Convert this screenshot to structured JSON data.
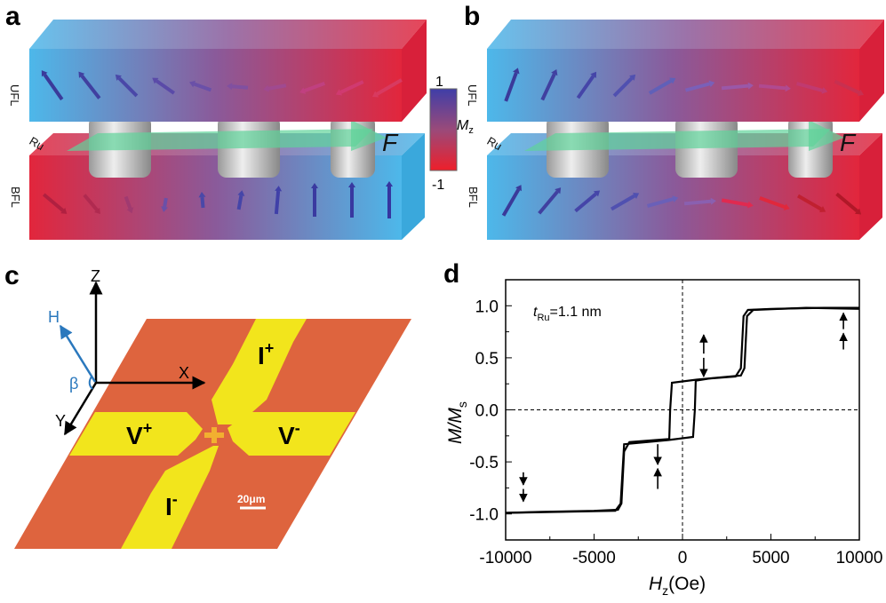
{
  "panels": {
    "a": {
      "label": "a",
      "top_layer": "UFL",
      "spacer": "Ru",
      "bottom_layer": "BFL",
      "force": "F"
    },
    "b": {
      "label": "b",
      "top_layer": "UFL",
      "spacer": "Ru",
      "bottom_layer": "BFL",
      "force": "F"
    },
    "c": {
      "label": "c",
      "axis_z": "Z",
      "axis_x": "X",
      "axis_y": "Y",
      "field": "H",
      "angle": "β",
      "lead_i_plus": "I",
      "lead_i_plus_sup": "+",
      "lead_i_minus": "I",
      "lead_i_minus_sup": "-",
      "lead_v_plus": "V",
      "lead_v_plus_sup": "+",
      "lead_v_minus": "V",
      "lead_v_minus_sup": "-",
      "scale_bar": "20μm",
      "colors": {
        "substrate": "#de643e",
        "leads": "#f2e51c",
        "field": "#2a78bd"
      }
    },
    "d": {
      "label": "d"
    }
  },
  "colorbar": {
    "max_label": "1",
    "min_label": "-1",
    "title": "M",
    "title_sub": "z",
    "colors": {
      "max": "#3f3ea8",
      "mid": "#9a4a7a",
      "min": "#ee1f2a"
    }
  },
  "slab_colors": {
    "blue": "#4db8ea",
    "purple": "#8a5a9a",
    "red": "#e2263c"
  },
  "chart_data": {
    "type": "line",
    "xlabel": "H",
    "xlabel_sub": "z",
    "xlabel_unit": "(Oe)",
    "ylabel": "M/M",
    "ylabel_sub": "s",
    "annotation": {
      "var": "t",
      "sub": "Ru",
      "text": "=1.1 nm"
    },
    "xlim": [
      -10000,
      10000
    ],
    "ylim": [
      -1.25,
      1.25
    ],
    "xticks": [
      "-10000",
      "-5000",
      "0",
      "5000",
      "10000"
    ],
    "yticks": [
      "-1.0",
      "-0.5",
      "0.0",
      "0.5",
      "1.0"
    ],
    "grid": false,
    "reference_lines": {
      "x": 0,
      "y": 0,
      "style": "dashed"
    },
    "series": [
      {
        "x": [
          10000,
          7000,
          4000,
          3650,
          3500,
          3300,
          2000,
          800,
          -600,
          -700,
          -750,
          -1500,
          -3000,
          -3300,
          -3450,
          -3650,
          -5000,
          -8000,
          -10000
        ],
        "y": [
          0.97,
          0.98,
          0.96,
          0.9,
          0.4,
          0.33,
          0.31,
          0.29,
          0.26,
          0.0,
          -0.28,
          -0.29,
          -0.31,
          -0.4,
          -0.9,
          -0.96,
          -0.97,
          -0.98,
          -0.99
        ]
      },
      {
        "x": [
          -10000,
          -7000,
          -3800,
          -3500,
          -3300,
          -2000,
          -800,
          600,
          700,
          750,
          1500,
          3000,
          3300,
          3450,
          3700,
          5000,
          8000,
          10000
        ],
        "y": [
          -0.99,
          -0.98,
          -0.97,
          -0.9,
          -0.33,
          -0.31,
          -0.29,
          -0.26,
          0.0,
          0.28,
          0.3,
          0.32,
          0.4,
          0.9,
          0.96,
          0.97,
          0.98,
          0.98
        ]
      }
    ],
    "state_arrows": [
      {
        "x": -9000,
        "upper": "down",
        "lower": "down"
      },
      {
        "x": -1400,
        "upper": "down",
        "lower": "up"
      },
      {
        "x": 1200,
        "upper": "up",
        "lower": "down"
      },
      {
        "x": 9100,
        "upper": "up",
        "lower": "up"
      }
    ]
  }
}
